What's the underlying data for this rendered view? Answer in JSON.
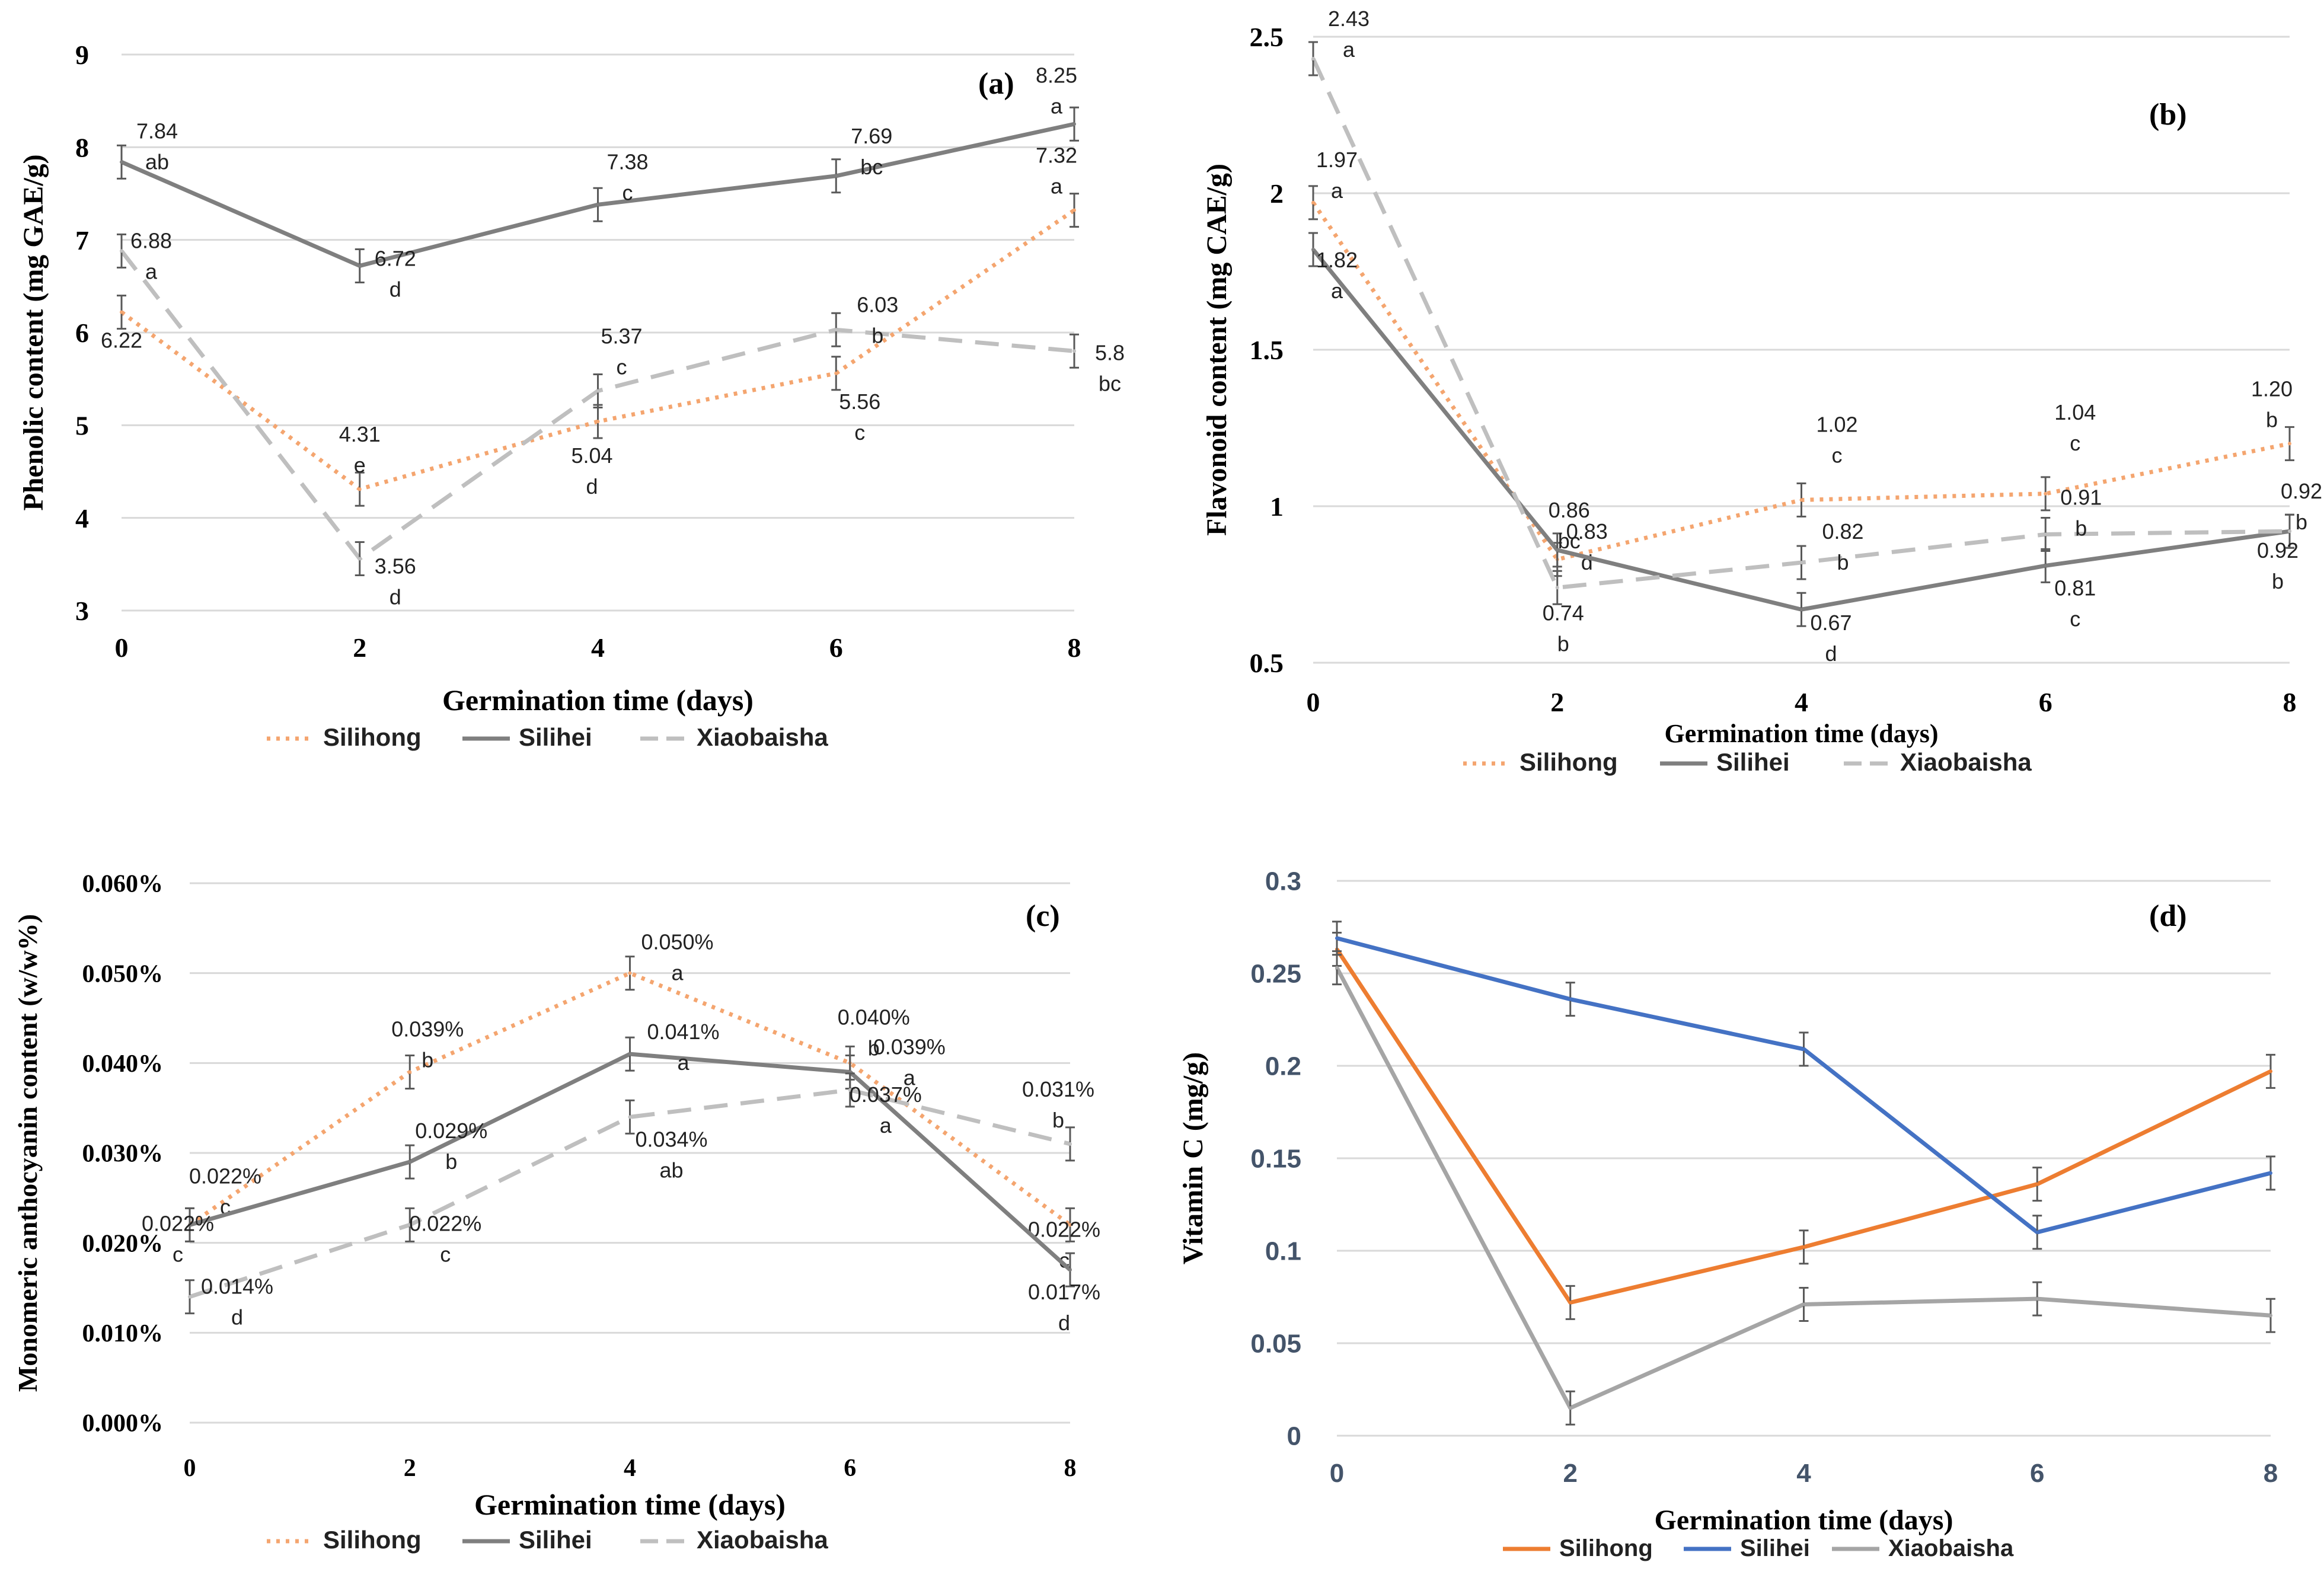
{
  "chart_data": [
    {
      "id": "a",
      "type": "line",
      "panel_label": "(a)",
      "xlabel": "Germination  time (days)",
      "ylabel": "Phenolic content (mg GAE/g)",
      "x": [
        0,
        2,
        4,
        6,
        8
      ],
      "ylim": [
        3,
        9
      ],
      "y_ticks": [
        "3",
        "4",
        "5",
        "6",
        "7",
        "8",
        "9"
      ],
      "x_ticks": [
        "0",
        "2",
        "4",
        "6",
        "8"
      ],
      "series": [
        {
          "name": "Silihong",
          "values": [
            6.22,
            4.31,
            5.04,
            5.56,
            7.32
          ],
          "labels": [
            "6.22",
            "4.31",
            "5.04",
            "5.56",
            "7.32"
          ],
          "letters": [
            "",
            "e",
            "d",
            "c",
            "a"
          ],
          "color": "#f4a56f",
          "dash": "dot"
        },
        {
          "name": "Silihei",
          "values": [
            7.84,
            6.72,
            7.38,
            7.69,
            8.25
          ],
          "labels": [
            "7.84",
            "6.72",
            "7.38",
            "7.69",
            "8.25"
          ],
          "letters": [
            "ab",
            "d",
            "c",
            "bc",
            "a"
          ],
          "color": "#7f7f7f",
          "dash": "solid"
        },
        {
          "name": "Xiaobaisha",
          "values": [
            6.88,
            3.56,
            5.37,
            6.03,
            5.8
          ],
          "labels": [
            "6.88",
            "3.56",
            "5.37",
            "6.03",
            "5.8"
          ],
          "letters": [
            "a",
            "d",
            "c",
            "b",
            "bc"
          ],
          "color": "#bfbfbf",
          "dash": "dash"
        }
      ],
      "legend": [
        "Silihong",
        "Silihei",
        "Xiaobaisha"
      ]
    },
    {
      "id": "b",
      "type": "line",
      "panel_label": "(b)",
      "xlabel": "Germination time (days)",
      "ylabel": "Flavonoid content (mg CAE/g)",
      "x": [
        0,
        2,
        4,
        6,
        8
      ],
      "ylim": [
        0.5,
        2.5
      ],
      "y_ticks": [
        "0.5",
        "1",
        "1.5",
        "2",
        "2.5"
      ],
      "x_ticks": [
        "0",
        "2",
        "4",
        "6",
        "8"
      ],
      "series": [
        {
          "name": "Silihong",
          "values": [
            1.97,
            0.83,
            1.02,
            1.04,
            1.2
          ],
          "labels": [
            "1.97",
            "0.83",
            "1.02",
            "1.04",
            "1.20"
          ],
          "letters": [
            "a",
            "d",
            "c",
            "c",
            "b"
          ],
          "color": "#f4a56f",
          "dash": "dot"
        },
        {
          "name": "Silihei",
          "values": [
            1.82,
            0.86,
            0.67,
            0.81,
            0.92
          ],
          "labels": [
            "1.82",
            "0.86",
            "0.67",
            "0.81",
            "0.92"
          ],
          "letters": [
            "a",
            "bc",
            "d",
            "c",
            "b"
          ],
          "color": "#7f7f7f",
          "dash": "solid"
        },
        {
          "name": "Xiaobaisha",
          "values": [
            2.43,
            0.74,
            0.82,
            0.91,
            0.92
          ],
          "labels": [
            "2.43",
            "0.74",
            "0.82",
            "0.91",
            "0.92"
          ],
          "letters": [
            "a",
            "b",
            "b",
            "b",
            "b"
          ],
          "color": "#bfbfbf",
          "dash": "dash"
        }
      ],
      "legend": [
        "Silihong",
        "Silihei",
        "Xiaobaisha"
      ]
    },
    {
      "id": "c",
      "type": "line",
      "panel_label": "(c)",
      "xlabel": "Germination  time (days)",
      "ylabel": "Monomeric anthocyanin content (w/w%)",
      "x": [
        0,
        2,
        4,
        6,
        8
      ],
      "ylim": [
        0,
        0.06
      ],
      "y_ticks": [
        "0.000%",
        "0.010%",
        "0.020%",
        "0.030%",
        "0.040%",
        "0.050%",
        "0.060%"
      ],
      "x_ticks": [
        "0",
        "2",
        "4",
        "6",
        "8"
      ],
      "series": [
        {
          "name": "Silihong",
          "values": [
            0.022,
            0.039,
            0.05,
            0.04,
            0.022
          ],
          "labels": [
            "0.022%",
            "0.039%",
            "0.050%",
            "0.040%",
            "0.022%"
          ],
          "letters": [
            "c",
            "b",
            "a",
            "b",
            "c"
          ],
          "color": "#f4a56f",
          "dash": "dot"
        },
        {
          "name": "Silihei",
          "values": [
            0.022,
            0.029,
            0.041,
            0.039,
            0.017
          ],
          "labels": [
            "0.022%",
            "0.029%",
            "0.041%",
            "0.039%",
            "0.017%"
          ],
          "letters": [
            "c",
            "b",
            "a",
            "a",
            "d"
          ],
          "color": "#7f7f7f",
          "dash": "solid"
        },
        {
          "name": "Xiaobaisha",
          "values": [
            0.014,
            0.022,
            0.034,
            0.037,
            0.031
          ],
          "labels": [
            "0.014%",
            "0.022%",
            "0.034%",
            "0.037%",
            "0.031%"
          ],
          "letters": [
            "d",
            "c",
            "ab",
            "a",
            "b"
          ],
          "color": "#bfbfbf",
          "dash": "dash"
        }
      ],
      "legend": [
        "Silihong",
        "Silihei",
        "Xiaobaisha"
      ]
    },
    {
      "id": "d",
      "type": "line",
      "panel_label": "(d)",
      "xlabel": "Germination  time (days)",
      "ylabel": "Vitamin  C (mg/g)",
      "x": [
        0,
        2,
        4,
        6,
        8
      ],
      "ylim": [
        0,
        0.3
      ],
      "y_ticks": [
        "0",
        "0.05",
        "0.1",
        "0.15",
        "0.2",
        "0.25",
        "0.3"
      ],
      "x_ticks": [
        "0",
        "2",
        "4",
        "6",
        "8"
      ],
      "series": [
        {
          "name": "Silihong",
          "values": [
            0.263,
            0.072,
            0.102,
            0.136,
            0.197
          ],
          "color": "#ed7d31",
          "dash": "solid"
        },
        {
          "name": "Silihei",
          "values": [
            0.269,
            0.236,
            0.209,
            0.11,
            0.142
          ],
          "color": "#4472c4",
          "dash": "solid"
        },
        {
          "name": "Xiaobaisha",
          "values": [
            0.253,
            0.015,
            0.071,
            0.074,
            0.065
          ],
          "color": "#a5a5a5",
          "dash": "solid"
        }
      ],
      "legend": [
        "Silihong",
        "Silihei",
        "Xiaobaisha"
      ]
    }
  ]
}
